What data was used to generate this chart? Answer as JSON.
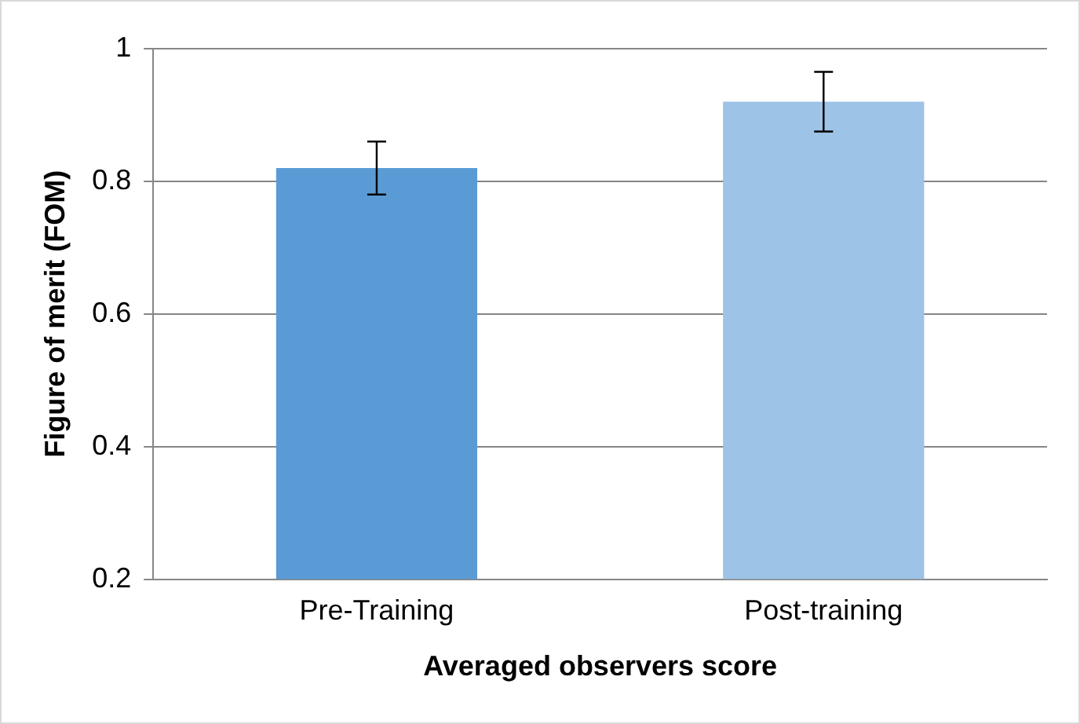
{
  "chart_data": {
    "type": "bar",
    "xlabel": "Averaged observers score",
    "ylabel": "Figure of merit (FOM)",
    "categories": [
      "Pre-Training",
      "Post-training"
    ],
    "values": [
      0.82,
      0.92
    ],
    "errors": [
      0.04,
      0.045
    ],
    "colors": [
      "#5b9bd5",
      "#9dc3e6"
    ],
    "ylim": [
      0.2,
      1
    ],
    "yticks": [
      0.2,
      0.4,
      0.6,
      0.8,
      1
    ],
    "grid": "y",
    "legend": false
  }
}
